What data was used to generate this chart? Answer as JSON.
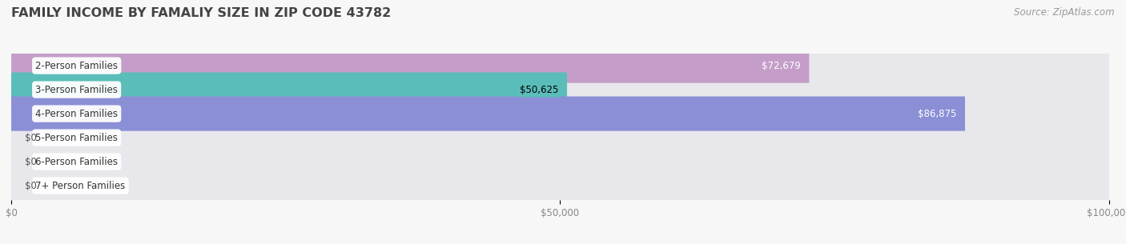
{
  "title": "FAMILY INCOME BY FAMALIY SIZE IN ZIP CODE 43782",
  "source": "Source: ZipAtlas.com",
  "categories": [
    "2-Person Families",
    "3-Person Families",
    "4-Person Families",
    "5-Person Families",
    "6-Person Families",
    "7+ Person Families"
  ],
  "values": [
    72679,
    50625,
    86875,
    0,
    0,
    0
  ],
  "bar_colors": [
    "#c49ec8",
    "#5bbdb9",
    "#8b8fd6",
    "#f490a5",
    "#f5c98a",
    "#f4a093"
  ],
  "label_colors": [
    "white",
    "black",
    "white",
    "black",
    "black",
    "black"
  ],
  "bg_color": "#f7f7f7",
  "bar_bg_color": "#e8e8ec",
  "row_sep_color": "#d8d8e0",
  "xlim": [
    0,
    100000
  ],
  "xticks": [
    0,
    50000,
    100000
  ],
  "xtick_labels": [
    "$0",
    "$50,000",
    "$100,000"
  ],
  "title_fontsize": 11.5,
  "label_fontsize": 8.5,
  "value_fontsize": 8.5,
  "source_fontsize": 8.5
}
